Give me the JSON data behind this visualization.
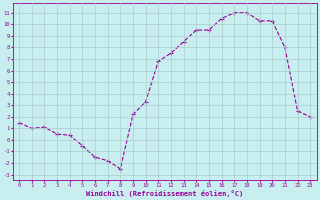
{
  "y_data": [
    1.5,
    1.0,
    1.1,
    0.5,
    0.4,
    -0.5,
    -1.5,
    -1.8,
    -2.5,
    2.2,
    3.3,
    6.8,
    7.5,
    8.5,
    9.5,
    9.5,
    10.5,
    11.0,
    11.0,
    10.3,
    10.3,
    8.0,
    2.5,
    2.0
  ],
  "line_color": "#990099",
  "bg_color": "#c8eef0",
  "grid_color": "#aacccc",
  "xlabel": "Windchill (Refroidissement éolien,°C)",
  "xlabel_color": "#990099",
  "ylabel_ticks": [
    -3,
    -2,
    -1,
    0,
    1,
    2,
    3,
    4,
    5,
    6,
    7,
    8,
    9,
    10,
    11
  ],
  "xtick_labels": [
    "0",
    "1",
    "2",
    "3",
    "4",
    "5",
    "6",
    "7",
    "8",
    "9",
    "10",
    "11",
    "12",
    "13",
    "14",
    "15",
    "16",
    "17",
    "18",
    "19",
    "20",
    "21",
    "22",
    "23"
  ],
  "xlim": [
    -0.5,
    23.5
  ],
  "ylim": [
    -3.5,
    11.8
  ],
  "tick_color": "#990099",
  "axis_color": "#990099",
  "tick_fontsize": 4.0,
  "xlabel_fontsize": 5.0,
  "linewidth": 0.8,
  "markersize": 3.5,
  "grid_linewidth": 0.5
}
